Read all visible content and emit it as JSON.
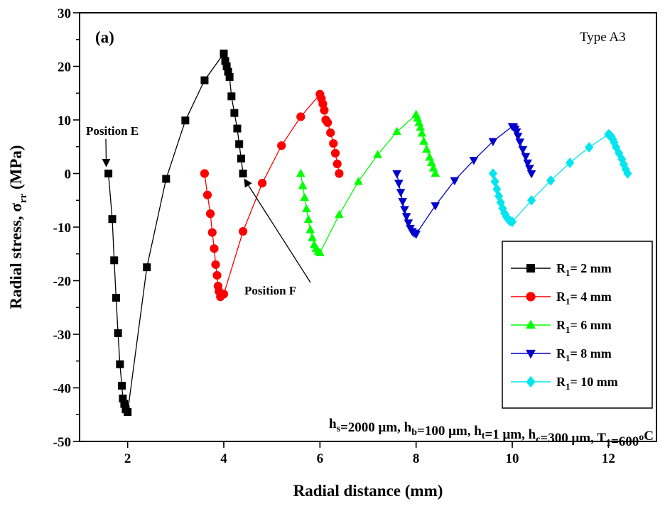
{
  "chart_data": {
    "type": "line",
    "title": "",
    "panel_label": "(a)",
    "type_label": "Type A3",
    "xlabel": "Radial distance (mm)",
    "ylabel": {
      "main": "Radial stress, σ",
      "sub": "rr",
      "unit": " (MPa)"
    },
    "xlim": [
      1.0,
      13.0
    ],
    "ylim": [
      -50,
      30
    ],
    "xticks": [
      2,
      4,
      6,
      8,
      10,
      12
    ],
    "xtick_labels": [
      "2",
      "4",
      "6",
      "8",
      "10",
      "12"
    ],
    "yticks": [
      -50,
      -40,
      -30,
      -20,
      -10,
      0,
      10,
      20,
      30
    ],
    "ytick_labels": [
      "-50",
      "-40",
      "-30",
      "-20",
      "-10",
      "0",
      "10",
      "20",
      "30"
    ],
    "grid": false,
    "legend_position": "right",
    "parameters": {
      "parts": [
        {
          "t": "h"
        },
        {
          "t": "s",
          "sub": true
        },
        {
          "t": "=2000 μm, h"
        },
        {
          "t": "b",
          "sub": true
        },
        {
          "t": "=100 μm, h"
        },
        {
          "t": "t",
          "sub": true
        },
        {
          "t": "=1 μm, h"
        },
        {
          "t": "c",
          "sub": true
        },
        {
          "t": "=300 μm, T"
        },
        {
          "t": "1",
          "sub": true
        },
        {
          "t": "=600"
        },
        {
          "t": "o",
          "sup": true
        },
        {
          "t": "C"
        }
      ]
    },
    "annotations": [
      {
        "text": "Position E",
        "x": 1.6,
        "y": 0
      },
      {
        "text": "Position F",
        "x": 4.4,
        "y": 0
      }
    ],
    "series": [
      {
        "name_main": "R",
        "name_sub": "1",
        "name_rest": "= 2 mm",
        "color": "#000000",
        "marker": "square",
        "x": [
          1.6,
          1.68,
          1.72,
          1.76,
          1.8,
          1.84,
          1.88,
          1.9,
          1.93,
          1.96,
          2.0,
          2.4,
          2.8,
          3.2,
          3.6,
          4.0,
          4.03,
          4.06,
          4.09,
          4.12,
          4.16,
          4.22,
          4.28,
          4.32,
          4.36,
          4.4
        ],
        "y": [
          0,
          -8.5,
          -16.2,
          -23.2,
          -29.8,
          -35.6,
          -39.6,
          -42.0,
          -43.0,
          -44.0,
          -44.5,
          -17.5,
          -1.0,
          9.9,
          17.4,
          22.4,
          21.0,
          20.0,
          19.0,
          18.0,
          14.4,
          11.3,
          8.4,
          5.5,
          2.8,
          0
        ]
      },
      {
        "name_main": "R",
        "name_sub": "1",
        "name_rest": "= 4 mm",
        "color": "#ff0000",
        "marker": "circle",
        "x": [
          3.6,
          3.66,
          3.72,
          3.76,
          3.8,
          3.83,
          3.86,
          3.88,
          3.9,
          3.93,
          4.0,
          4.4,
          4.8,
          5.2,
          5.6,
          6.0,
          6.03,
          6.06,
          6.09,
          6.12,
          6.16,
          6.22,
          6.28,
          6.32,
          6.36,
          6.4
        ],
        "y": [
          0,
          -4.0,
          -7.5,
          -11.0,
          -14.0,
          -17.0,
          -19.0,
          -21.0,
          -22.0,
          -23.0,
          -22.5,
          -10.8,
          -1.8,
          5.2,
          10.6,
          14.8,
          14.0,
          13.0,
          11.8,
          10.0,
          9.5,
          7.6,
          5.6,
          3.8,
          1.8,
          0
        ]
      },
      {
        "name_main": "R",
        "name_sub": "1",
        "name_rest": "= 6 mm",
        "color": "#00ff00",
        "marker": "triangle-up",
        "x": [
          5.6,
          5.64,
          5.68,
          5.72,
          5.76,
          5.8,
          5.84,
          5.88,
          5.92,
          5.96,
          6.0,
          6.4,
          6.8,
          7.2,
          7.6,
          8.0,
          8.03,
          8.06,
          8.09,
          8.12,
          8.16,
          8.22,
          8.28,
          8.32,
          8.36,
          8.4
        ],
        "y": [
          0,
          -2.3,
          -4.5,
          -6.6,
          -8.6,
          -10.5,
          -12.0,
          -13.3,
          -14.0,
          -14.5,
          -14.8,
          -7.7,
          -1.5,
          3.5,
          7.8,
          11.0,
          10.3,
          9.5,
          8.6,
          7.5,
          6.0,
          4.5,
          3.0,
          2.0,
          1.0,
          0
        ]
      },
      {
        "name_main": "R",
        "name_sub": "1",
        "name_rest": "= 8 mm",
        "color": "#0000cc",
        "marker": "triangle-down",
        "x": [
          7.6,
          7.64,
          7.68,
          7.72,
          7.76,
          7.8,
          7.84,
          7.88,
          7.92,
          7.96,
          8.0,
          8.4,
          8.8,
          9.2,
          9.6,
          10.0,
          10.03,
          10.06,
          10.09,
          10.12,
          10.16,
          10.22,
          10.28,
          10.32,
          10.36,
          10.4
        ],
        "y": [
          0,
          -1.8,
          -3.5,
          -5.2,
          -6.7,
          -8.0,
          -9.2,
          -10.2,
          -10.8,
          -11.1,
          -11.3,
          -6.0,
          -1.3,
          2.5,
          6.0,
          8.8,
          8.7,
          8.3,
          7.8,
          7.0,
          5.9,
          4.5,
          3.2,
          2.0,
          1.0,
          0
        ]
      },
      {
        "name_main": "R",
        "name_sub": "1",
        "name_rest": "= 10 mm",
        "color": "#00e5ee",
        "marker": "diamond",
        "x": [
          9.6,
          9.64,
          9.68,
          9.72,
          9.76,
          9.8,
          9.84,
          9.88,
          9.92,
          9.96,
          10.0,
          10.4,
          10.8,
          11.2,
          11.6,
          12.0,
          12.03,
          12.06,
          12.09,
          12.12,
          12.16,
          12.22,
          12.28,
          12.32,
          12.36,
          12.4
        ],
        "y": [
          0,
          -1.5,
          -2.9,
          -4.2,
          -5.4,
          -6.5,
          -7.4,
          -8.1,
          -8.6,
          -8.9,
          -9.0,
          -5.0,
          -1.3,
          2.0,
          4.9,
          7.3,
          7.2,
          6.9,
          6.4,
          5.8,
          4.9,
          3.8,
          2.7,
          1.7,
          0.8,
          0
        ]
      }
    ]
  }
}
